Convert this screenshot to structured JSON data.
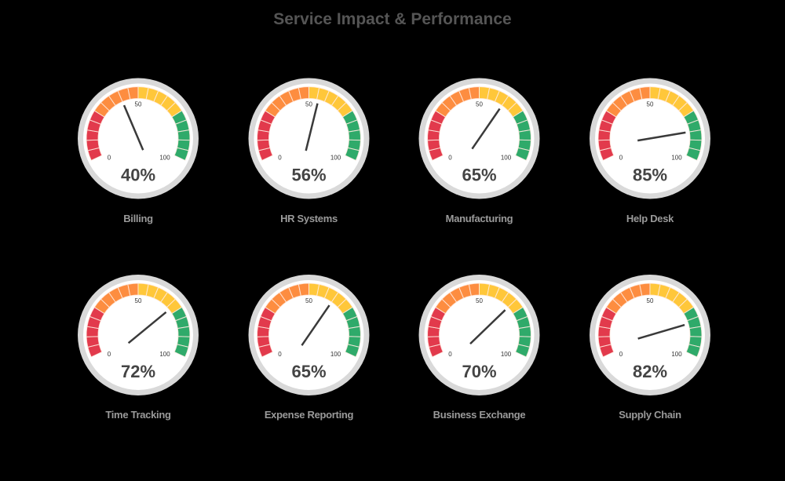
{
  "title": "Service Impact & Performance",
  "colors": {
    "red": "#E23A4C",
    "orange": "#FD8D40",
    "yellow": "#FFC73A",
    "green": "#2FAA6A",
    "ring": "#D9D9D9",
    "face": "#FFFFFF",
    "needle": "#3A3A3A",
    "value_text": "#444444",
    "label_text": "#9A9A9A",
    "title_text": "#555555"
  },
  "scale": {
    "min_label": "0",
    "mid_label": "50",
    "max_label": "100"
  },
  "chart_data": {
    "type": "gauge",
    "title": "Service Impact & Performance",
    "range": [
      0,
      100
    ],
    "bands": [
      {
        "from": 0,
        "to": 25,
        "color": "#E23A4C"
      },
      {
        "from": 25,
        "to": 50,
        "color": "#FD8D40"
      },
      {
        "from": 50,
        "to": 75,
        "color": "#FFC73A"
      },
      {
        "from": 75,
        "to": 100,
        "color": "#2FAA6A"
      }
    ],
    "tick_labels": [
      "0",
      "50",
      "100"
    ],
    "categories": [
      "Billing",
      "HR Systems",
      "Manufacturing",
      "Help Desk",
      "Time Tracking",
      "Expense Reporting",
      "Business Exchange",
      "Supply Chain"
    ],
    "values": [
      40,
      56,
      65,
      85,
      72,
      65,
      70,
      82
    ],
    "unit": "%"
  },
  "gauges": [
    {
      "name": "Billing",
      "value": 40,
      "display": "40%"
    },
    {
      "name": "HR Systems",
      "value": 56,
      "display": "56%"
    },
    {
      "name": "Manufacturing",
      "value": 65,
      "display": "65%"
    },
    {
      "name": "Help Desk",
      "value": 85,
      "display": "85%"
    },
    {
      "name": "Time Tracking",
      "value": 72,
      "display": "72%"
    },
    {
      "name": "Expense Reporting",
      "value": 65,
      "display": "65%"
    },
    {
      "name": "Business Exchange",
      "value": 70,
      "display": "70%"
    },
    {
      "name": "Supply Chain",
      "value": 82,
      "display": "82%"
    }
  ]
}
